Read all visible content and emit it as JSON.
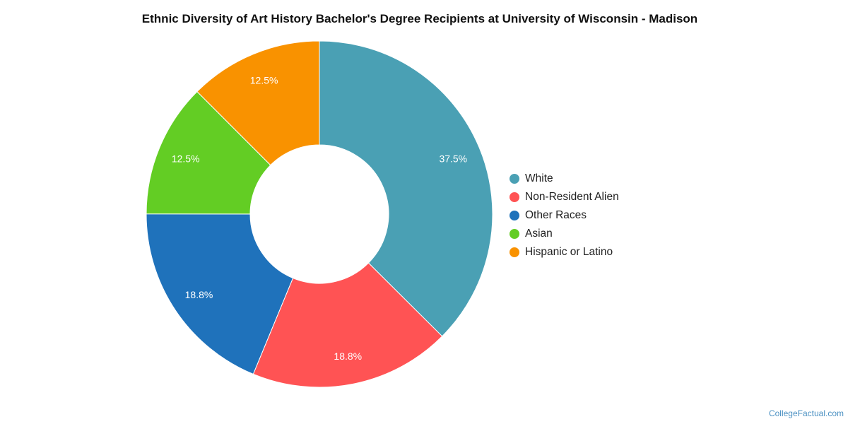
{
  "chart_data": {
    "type": "pie",
    "donut": true,
    "title": "Ethnic Diversity of Art History Bachelor's Degree Recipients at University of Wisconsin - Madison",
    "categories": [
      "White",
      "Non-Resident Alien",
      "Other Races",
      "Asian",
      "Hispanic or Latino"
    ],
    "values": [
      37.5,
      18.8,
      18.8,
      12.5,
      12.5
    ],
    "labels": [
      "37.5%",
      "18.8%",
      "18.8%",
      "12.5%",
      "12.5%"
    ],
    "colors": [
      "#4aa0b4",
      "#ff5354",
      "#1f72bb",
      "#63cd24",
      "#f99200"
    ],
    "legend_position": "right"
  },
  "source_label": "CollegeFactual.com"
}
